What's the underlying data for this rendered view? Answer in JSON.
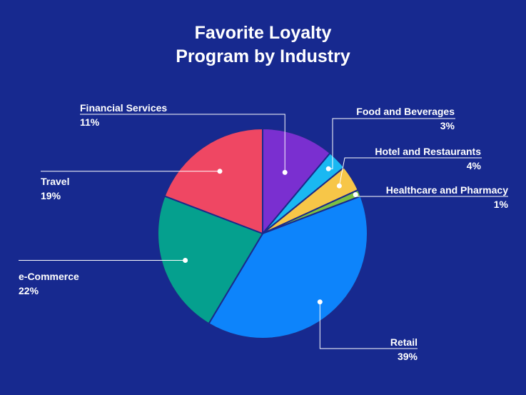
{
  "chart_data": {
    "type": "pie",
    "title_lines": [
      "Favorite Loyalty",
      "Program by Industry"
    ],
    "categories": [
      "Financial Services",
      "Food and Beverages",
      "Hotel and Restaurants",
      "Healthcare and Pharmacy",
      "Retail",
      "e-Commerce",
      "Travel"
    ],
    "values": [
      11,
      3,
      4,
      1,
      39,
      22,
      19
    ],
    "value_labels": [
      "11%",
      "3%",
      "4%",
      "1%",
      "39%",
      "22%",
      "19%"
    ],
    "colors": [
      "#7a2fd0",
      "#1ab8f2",
      "#f7c648",
      "#7bc043",
      "#0d84fb",
      "#05a08e",
      "#ef4763"
    ]
  }
}
